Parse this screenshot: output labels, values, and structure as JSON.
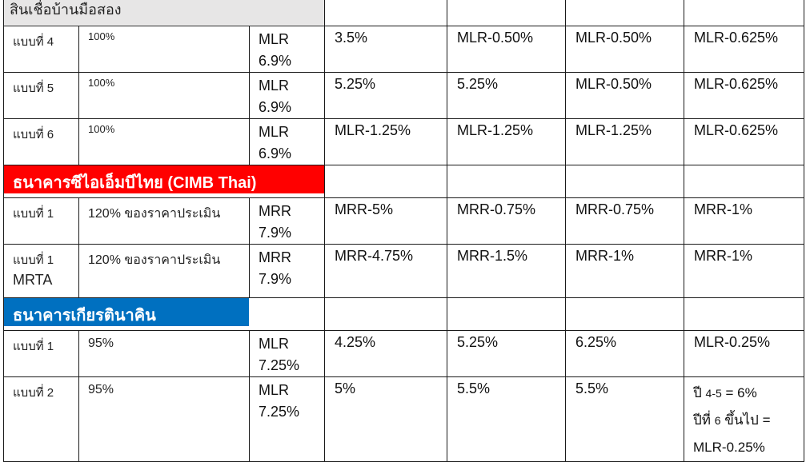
{
  "sections": [
    {
      "title": "สินเชื่อบ้านมือสอง"
    },
    {
      "title": "ธนาคารซีไอเอ็มบีไทย (CIMB Thai)"
    },
    {
      "title": "ธนาคารเกียรตินาคิน"
    }
  ],
  "rows": [
    {
      "plan": "แบบที่ 4",
      "ltv": "100%",
      "rate_base": "MLR",
      "rate_pct": "6.9%",
      "y1": "3.5%",
      "y2": "MLR-0.50%",
      "y3": "MLR-0.50%",
      "y4": "MLR-0.625%"
    },
    {
      "plan": "แบบที่ 5",
      "ltv": "100%",
      "rate_base": "MLR",
      "rate_pct": "6.9%",
      "y1": "5.25%",
      "y2": "5.25%",
      "y3": "MLR-0.50%",
      "y4": "MLR-0.625%"
    },
    {
      "plan": "แบบที่ 6",
      "ltv": "100%",
      "rate_base": "MLR",
      "rate_pct": "6.9%",
      "y1": "MLR-1.25%",
      "y2": "MLR-1.25%",
      "y3": "MLR-1.25%",
      "y4": "MLR-0.625%"
    },
    {
      "plan": "แบบที่ 1",
      "ltv": "120% ของราคาประเมิน",
      "rate_base": "MRR",
      "rate_pct": "7.9%",
      "y1": "MRR-5%",
      "y2": "MRR-0.75%",
      "y3": "MRR-0.75%",
      "y4": "MRR-1%"
    },
    {
      "plan": "แบบที่ 1",
      "plan_sub": "MRTA",
      "ltv": "120% ของราคาประเมิน",
      "rate_base": "MRR",
      "rate_pct": "7.9%",
      "y1": "MRR-4.75%",
      "y2": "MRR-1.5%",
      "y3": "MRR-1%",
      "y4": "MRR-1%"
    },
    {
      "plan": "แบบที่ 1",
      "ltv": "95%",
      "rate_base": "MLR",
      "rate_pct": "7.25%",
      "y1": "4.25%",
      "y2": "5.25%",
      "y3": "6.25%",
      "y4": "MLR-0.25%"
    },
    {
      "plan": "แบบที่ 2",
      "ltv": "95%",
      "rate_base": "MLR",
      "rate_pct": "7.25%",
      "y1": "5%",
      "y2": "5.5%",
      "y3": "5.5%",
      "y4_line1_a": "ปี ",
      "y4_line1_b": "4-5",
      "y4_line1_c": " = 6%",
      "y4_line2_a": "ปีที่ ",
      "y4_line2_b": "6",
      "y4_line2_c": " ขึ้นไป =",
      "y4_line3": "MLR-0.25%"
    }
  ],
  "colors": {
    "cimb_red": "#ff0000",
    "kk_blue": "#0070c0",
    "grey_header": "#e7e6e6"
  }
}
